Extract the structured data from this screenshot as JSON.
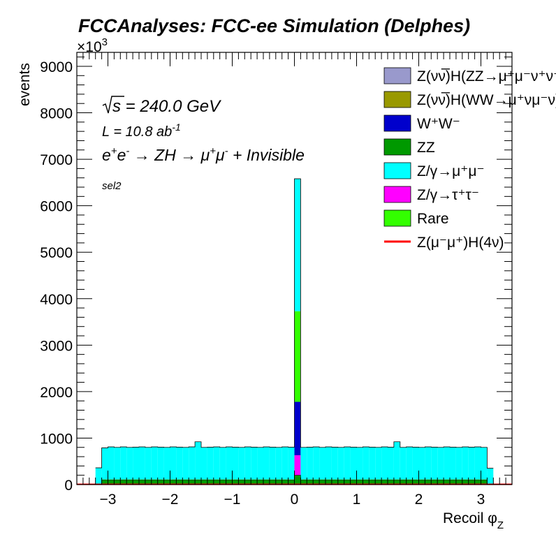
{
  "chart_data": {
    "type": "bar",
    "stacked": true,
    "title": "FCCAnalyses: FCC-ee Simulation (Delphes)",
    "xlabel": "Recoil φ",
    "xlabel_sub": "Z",
    "ylabel": "events",
    "y_multiplier": "×10",
    "y_multiplier_exp": "3",
    "xlim": [
      -3.5,
      3.5
    ],
    "ylim": [
      0,
      9300
    ],
    "x_ticks": [
      -3,
      -2,
      -1,
      0,
      1,
      2,
      3
    ],
    "y_ticks": [
      0,
      1000,
      2000,
      3000,
      4000,
      5000,
      6000,
      7000,
      8000,
      9000
    ],
    "grid": false,
    "legend_position": "top-right",
    "annotations": {
      "sqrt_s": "s",
      "energy": " = 240.0 GeV",
      "lumi": "L = 10.8 ab",
      "lumi_exp": "-1",
      "process_1": "e",
      "process_2": "e",
      "process_3": " → ZH → μ",
      "process_4": "μ",
      "process_5": " + Invisible",
      "selection": "sel2"
    },
    "legend": [
      {
        "text": "Z(νν̅)H(ZZ→μ⁺μ⁻ν⁺ν⁻)",
        "color": "#9999cc",
        "kind": "box"
      },
      {
        "text": "Z(νν̅)H(WW→μ⁺νμ⁻ν)",
        "color": "#999900",
        "kind": "box"
      },
      {
        "text": "W⁺W⁻",
        "color": "#0000cc",
        "kind": "box"
      },
      {
        "text": "ZZ",
        "color": "#009900",
        "kind": "box"
      },
      {
        "text": "Z/γ→μ⁺μ⁻",
        "color": "#00ffff",
        "kind": "box"
      },
      {
        "text": "Z/γ→τ⁺τ⁻",
        "color": "#ff00ff",
        "kind": "box"
      },
      {
        "text": "Rare",
        "color": "#33ff00",
        "kind": "box"
      },
      {
        "text": "Z(μ⁻μ⁺)H(4ν)",
        "color": "#ff0000",
        "kind": "line"
      }
    ],
    "bin_width": 0.1,
    "bins_x_low": [
      -3.2,
      -3.1,
      -3.0,
      -2.9,
      -2.8,
      -2.7,
      -2.6,
      -2.5,
      -2.4,
      -2.3,
      -2.2,
      -2.1,
      -2.0,
      -1.9,
      -1.8,
      -1.7,
      -1.6,
      -1.5,
      -1.4,
      -1.3,
      -1.2,
      -1.1,
      -1.0,
      -0.9,
      -0.8,
      -0.7,
      -0.6,
      -0.5,
      -0.4,
      -0.3,
      -0.2,
      -0.1,
      0.0,
      0.1,
      0.2,
      0.3,
      0.4,
      0.5,
      0.6,
      0.7,
      0.8,
      0.9,
      1.0,
      1.1,
      1.2,
      1.3,
      1.4,
      1.5,
      1.6,
      1.7,
      1.8,
      1.9,
      2.0,
      2.1,
      2.2,
      2.3,
      2.4,
      2.5,
      2.6,
      2.7,
      2.8,
      2.9,
      3.0,
      3.1
    ],
    "series": [
      {
        "name": "Z(νν̅)H(ZZ→μ⁺μ⁻ν⁺ν⁻)",
        "color": "#9999cc",
        "values": [
          0,
          0,
          0,
          0,
          0,
          0,
          0,
          0,
          0,
          0,
          0,
          0,
          0,
          0,
          0,
          0,
          0,
          0,
          0,
          0,
          0,
          0,
          0,
          0,
          0,
          0,
          0,
          0,
          0,
          0,
          0,
          0,
          0,
          0,
          0,
          0,
          0,
          0,
          0,
          0,
          0,
          0,
          0,
          0,
          0,
          0,
          0,
          0,
          0,
          0,
          0,
          0,
          0,
          0,
          0,
          0,
          0,
          0,
          0,
          0,
          0,
          0,
          0,
          0
        ]
      },
      {
        "name": "Z(νν̅)H(WW→μ⁺νμ⁻ν)",
        "color": "#999900",
        "values": [
          0,
          0,
          0,
          0,
          0,
          0,
          0,
          0,
          0,
          0,
          0,
          0,
          0,
          0,
          0,
          0,
          0,
          0,
          0,
          0,
          0,
          0,
          0,
          0,
          0,
          0,
          0,
          0,
          0,
          0,
          0,
          0,
          0,
          0,
          0,
          0,
          0,
          0,
          0,
          0,
          0,
          0,
          0,
          0,
          0,
          0,
          0,
          0,
          0,
          0,
          0,
          0,
          0,
          0,
          0,
          0,
          0,
          0,
          0,
          0,
          0,
          0,
          0,
          0
        ]
      },
      {
        "name": "W⁺W⁻",
        "color": "#0000cc",
        "values": [
          0,
          0,
          0,
          0,
          0,
          0,
          0,
          0,
          0,
          0,
          0,
          0,
          0,
          0,
          0,
          0,
          0,
          0,
          0,
          0,
          0,
          0,
          0,
          0,
          0,
          0,
          0,
          0,
          0,
          0,
          0,
          0,
          1150,
          0,
          0,
          0,
          0,
          0,
          0,
          0,
          0,
          0,
          0,
          0,
          0,
          0,
          0,
          0,
          0,
          0,
          0,
          0,
          0,
          0,
          0,
          0,
          0,
          0,
          0,
          0,
          0,
          0,
          0,
          0
        ]
      },
      {
        "name": "ZZ",
        "color": "#009900",
        "values": [
          10,
          95,
          95,
          95,
          95,
          95,
          95,
          95,
          95,
          95,
          95,
          95,
          95,
          95,
          95,
          95,
          95,
          95,
          95,
          95,
          95,
          95,
          95,
          95,
          95,
          95,
          95,
          95,
          95,
          95,
          95,
          95,
          200,
          95,
          95,
          95,
          95,
          95,
          95,
          95,
          95,
          95,
          95,
          95,
          95,
          95,
          95,
          95,
          95,
          95,
          95,
          95,
          95,
          95,
          95,
          95,
          95,
          95,
          95,
          95,
          95,
          95,
          95,
          10
        ]
      },
      {
        "name": "Z/γ→μ⁺μ⁻",
        "color": "#00ffff",
        "values": [
          350,
          680,
          700,
          690,
          700,
          690,
          695,
          700,
          690,
          700,
          695,
          690,
          700,
          695,
          690,
          700,
          810,
          690,
          695,
          700,
          690,
          700,
          695,
          690,
          700,
          695,
          690,
          700,
          695,
          690,
          700,
          695,
          2850,
          690,
          695,
          700,
          690,
          700,
          695,
          690,
          700,
          695,
          690,
          700,
          695,
          690,
          700,
          695,
          810,
          690,
          700,
          695,
          690,
          700,
          695,
          690,
          700,
          695,
          690,
          700,
          695,
          700,
          690,
          340
        ]
      },
      {
        "name": "Z/γ→τ⁺τ⁻",
        "color": "#ff00ff",
        "values": [
          0,
          0,
          0,
          0,
          0,
          0,
          0,
          0,
          0,
          0,
          0,
          0,
          0,
          0,
          0,
          0,
          0,
          0,
          0,
          0,
          0,
          0,
          0,
          0,
          0,
          0,
          0,
          0,
          0,
          0,
          0,
          0,
          430,
          0,
          0,
          0,
          0,
          0,
          0,
          0,
          0,
          0,
          0,
          0,
          0,
          0,
          0,
          0,
          0,
          0,
          0,
          0,
          0,
          0,
          0,
          0,
          0,
          0,
          0,
          0,
          0,
          0,
          0,
          0
        ]
      },
      {
        "name": "Rare",
        "color": "#33ff00",
        "values": [
          0,
          15,
          15,
          15,
          15,
          15,
          15,
          15,
          15,
          15,
          15,
          15,
          15,
          15,
          15,
          15,
          15,
          15,
          15,
          15,
          15,
          15,
          15,
          15,
          15,
          15,
          15,
          15,
          15,
          15,
          15,
          15,
          1950,
          15,
          15,
          15,
          15,
          15,
          15,
          15,
          15,
          15,
          15,
          15,
          15,
          15,
          15,
          15,
          15,
          15,
          15,
          15,
          15,
          15,
          15,
          15,
          15,
          15,
          15,
          15,
          15,
          15,
          15,
          0
        ]
      }
    ],
    "stack_order": [
      "ZZ",
      "Z/γ→τ⁺τ⁻",
      "W⁺W⁻",
      "Rare",
      "Z/γ→μ⁺μ⁻"
    ],
    "signal": {
      "name": "Z(μ⁻μ⁺)H(4ν)",
      "color": "#ff0000",
      "value": 5
    }
  }
}
